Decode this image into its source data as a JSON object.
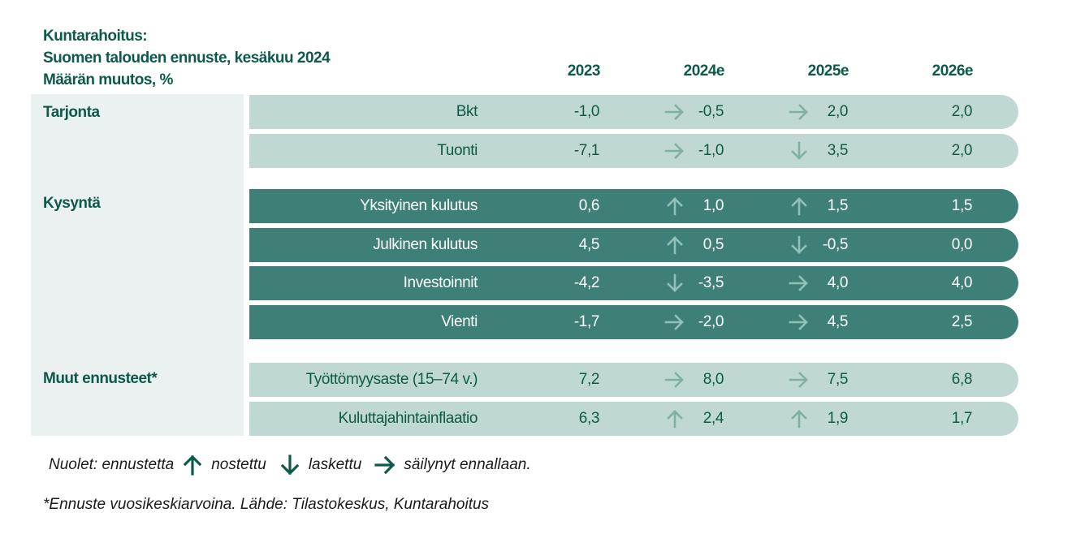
{
  "chart_data": {
    "type": "table",
    "title_lines": [
      "Kuntarahoitus:",
      "Suomen talouden ennuste, kesäkuu 2024",
      "Määrän muutos, %"
    ],
    "columns": [
      "2023",
      "2024e",
      "2025e",
      "2026e"
    ],
    "groups": [
      {
        "name": "Tarjonta",
        "style": "light",
        "rows": [
          {
            "label": "Bkt",
            "values": [
              "-1,0",
              "-0,5",
              "2,0",
              "2,0"
            ],
            "arrows": [
              "right",
              "right"
            ]
          },
          {
            "label": "Tuonti",
            "values": [
              "-7,1",
              "-1,0",
              "3,5",
              "2,0"
            ],
            "arrows": [
              "right",
              "down"
            ]
          }
        ]
      },
      {
        "name": "Kysyntä",
        "style": "dark",
        "rows": [
          {
            "label": "Yksityinen kulutus",
            "values": [
              "0,6",
              "1,0",
              "1,5",
              "1,5"
            ],
            "arrows": [
              "up",
              "up"
            ]
          },
          {
            "label": "Julkinen kulutus",
            "values": [
              "4,5",
              "0,5",
              "-0,5",
              "0,0"
            ],
            "arrows": [
              "up",
              "down"
            ]
          },
          {
            "label": "Investoinnit",
            "values": [
              "-4,2",
              "-3,5",
              "4,0",
              "4,0"
            ],
            "arrows": [
              "down",
              "right"
            ]
          },
          {
            "label": "Vienti",
            "values": [
              "-1,7",
              "-2,0",
              "4,5",
              "2,5"
            ],
            "arrows": [
              "right",
              "right"
            ]
          }
        ]
      },
      {
        "name": "Muut ennusteet*",
        "style": "light",
        "rows": [
          {
            "label": "Työttömyysaste (15–74 v.)",
            "values": [
              "7,2",
              "8,0",
              "7,5",
              "6,8"
            ],
            "arrows": [
              "right",
              "right"
            ]
          },
          {
            "label": "Kuluttajahintainflaatio",
            "values": [
              "6,3",
              "2,4",
              "1,9",
              "1,7"
            ],
            "arrows": [
              "up",
              "up"
            ]
          }
        ]
      }
    ],
    "legend": {
      "prefix": "Nuolet: ennustetta",
      "items": [
        {
          "arrow": "up",
          "label": "nostettu"
        },
        {
          "arrow": "down",
          "label": "laskettu"
        },
        {
          "arrow": "right",
          "label": "säilynyt ennallaan."
        }
      ]
    },
    "footnote": "*Ennuste vuosikeskiarvoina.  Lähde: Tilastokeskus, Kuntarahoitus",
    "colors": {
      "text": "#0d5a4a",
      "light_row": "#c0d8d4",
      "dark_row": "#3e7f77",
      "group_panel": "#ebf1f0"
    }
  }
}
